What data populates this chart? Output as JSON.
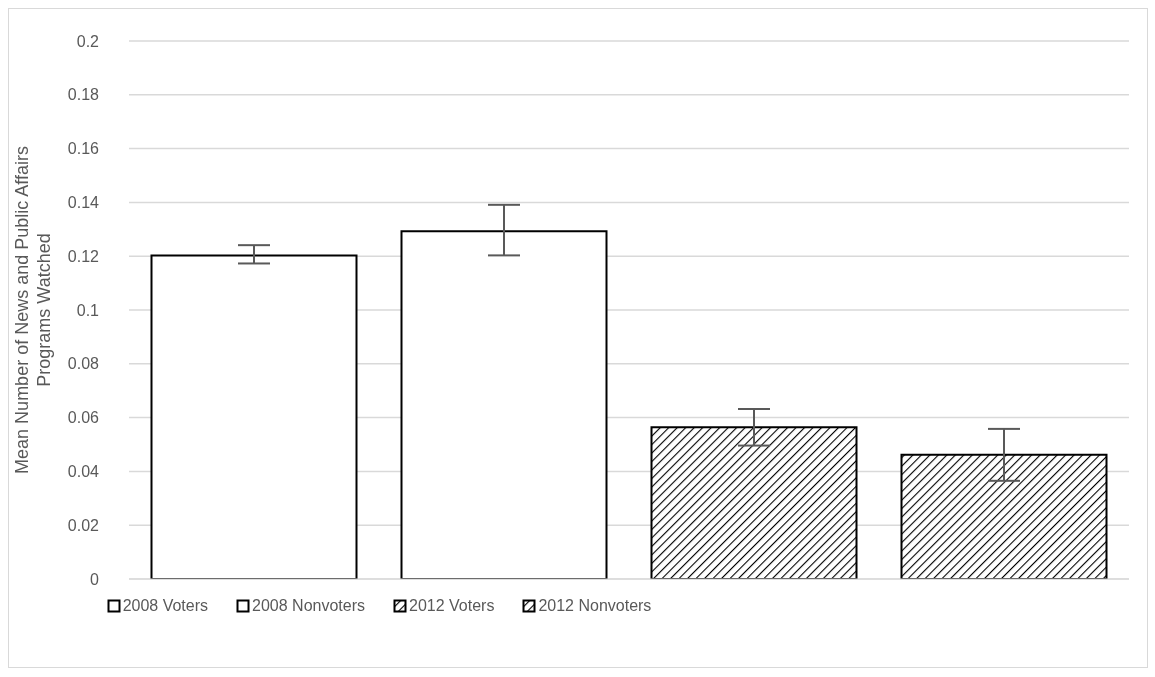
{
  "chart_data": {
    "type": "bar",
    "ylabel": "Mean Number of News and Public Affairs Programs Watched",
    "categories": [
      null,
      null,
      null,
      null
    ],
    "stacked": true,
    "series": [
      {
        "name": "2008 Voters",
        "color": "#ffffff",
        "values": [
          0.1203,
          null,
          null,
          null
        ],
        "errors": [
          [
            0.1173,
            0.1241
          ],
          null,
          null,
          null
        ]
      },
      {
        "name": "2008 Nonvoters",
        "color": "#ffffff",
        "values": [
          null,
          0.1293,
          null,
          null
        ],
        "errors": [
          null,
          [
            0.1203,
            0.1391
          ],
          null,
          null
        ]
      },
      {
        "name": "2012 Voters",
        "color": "#000000",
        "values": [
          null,
          null,
          0.0564,
          null
        ],
        "errors": [
          null,
          null,
          [
            0.0496,
            0.0632
          ],
          null
        ]
      },
      {
        "name": "2012 Nonvoters",
        "color": "#000000",
        "values": [
          null,
          null,
          null,
          0.0462
        ],
        "errors": [
          null,
          null,
          null,
          [
            0.0365,
            0.0558
          ]
        ]
      }
    ],
    "ylim": [
      0,
      0.2
    ],
    "yticks": [
      0,
      0.02,
      0.04,
      0.06,
      0.08,
      0.1,
      0.12,
      0.14,
      0.16,
      0.18,
      0.2
    ],
    "grid": "y",
    "legend": "bottom"
  }
}
